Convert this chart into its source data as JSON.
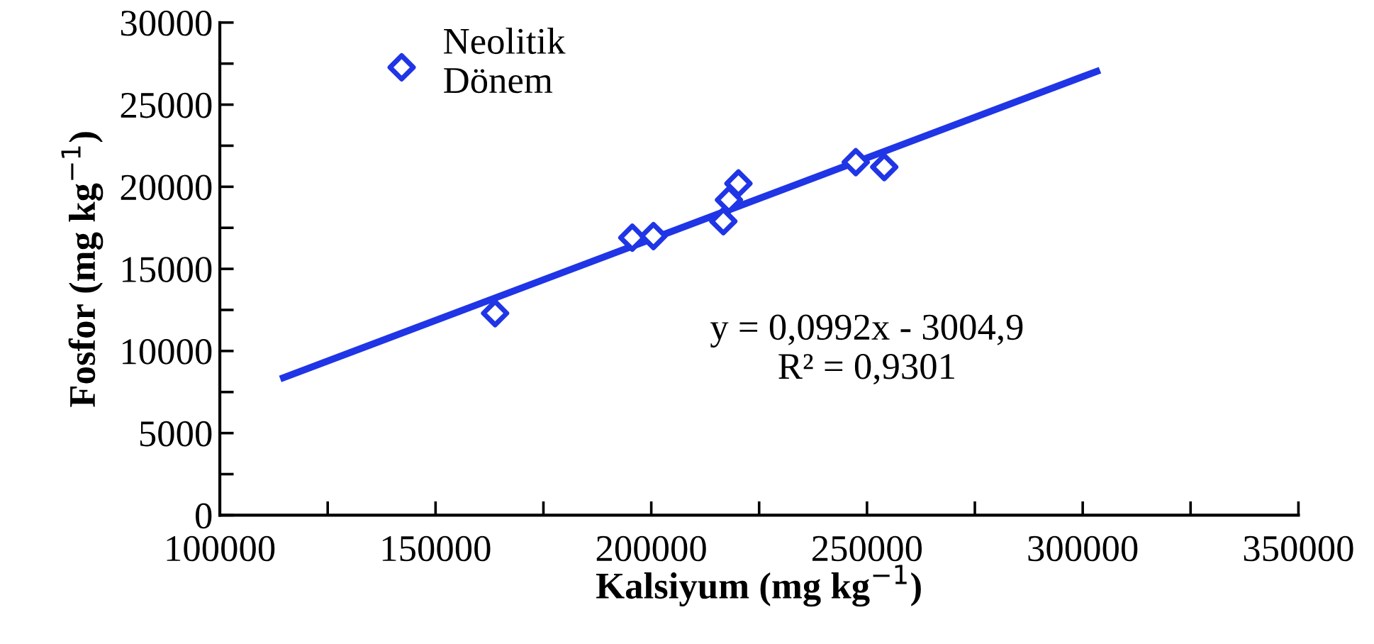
{
  "chart_data": {
    "type": "scatter",
    "xlabel": "Kalsiyum (mg kg$^{−1}$)",
    "ylabel": "Fosfor (mg kg$^{−1}$)",
    "xlim": [
      100000,
      350000
    ],
    "xticks": [
      100000,
      150000,
      200000,
      250000,
      300000,
      350000
    ],
    "ylim": [
      0,
      30000
    ],
    "yticks": [
      0,
      5000,
      10000,
      15000,
      20000,
      25000,
      30000
    ],
    "grid": false,
    "legend": "top left",
    "annotations": [
      "y = 0,0992x - 3004,9",
      "R² = 0,9301"
    ],
    "series": [
      {
        "name": "Neolitik\nDönem",
        "marker": "diamond",
        "color": "#1f35e6",
        "x": [
          163800,
          195600,
          200500,
          216700,
          218000,
          220200,
          247400,
          254000
        ],
        "values": [
          12300,
          16900,
          17000,
          17900,
          19200,
          20200,
          21500,
          21200
        ]
      },
      {
        "type": "line",
        "line_style": "solid",
        "color": "#1f35e6",
        "x": [
          114000,
          304000
        ],
        "values": [
          8300,
          27100
        ]
      }
    ]
  }
}
